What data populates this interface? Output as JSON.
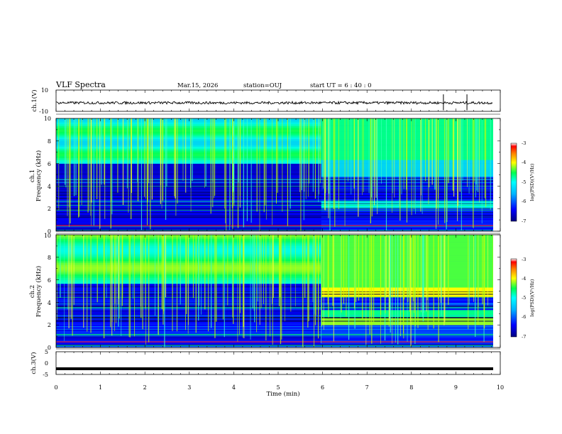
{
  "header": {
    "title": "VLF Spectra",
    "date": "Mar.15, 2026",
    "station": "station=OUJ",
    "start": "start UT =  6 : 40 : 0"
  },
  "axes": {
    "time_label": "Time  (min)",
    "time_ticks": [
      "0",
      "1",
      "2",
      "3",
      "4",
      "5",
      "6",
      "7",
      "8",
      "9",
      "10"
    ],
    "ch1_wave_label": "ch.1(V)",
    "ch1_wave_ticks": [
      "10",
      "-10"
    ],
    "spec1_label_a": "ch.1",
    "spec1_label_b": "Frequency  (kHz)",
    "spec2_label_a": "ch.2",
    "spec2_label_b": "Frequency  (kHz)",
    "freq_ticks": [
      "0",
      "2",
      "4",
      "6",
      "8",
      "10"
    ],
    "ch3_label": "ch.3(V)",
    "ch3_ticks": [
      "5",
      "0",
      "-5"
    ]
  },
  "colorbar": {
    "label": "log(PSD)(V²/Hz)",
    "ticks": [
      "-3",
      "-4",
      "-5",
      "-6",
      "-7"
    ]
  },
  "colors": {
    "spectrum_scale": [
      "#00007a",
      "#0000ff",
      "#0096ff",
      "#00ffff",
      "#00ff64",
      "#ffff00",
      "#ff8000",
      "#ff0000",
      "#ffffff"
    ]
  },
  "chart_data": [
    {
      "type": "line",
      "title": "VLF Spectra",
      "panel": "ch.1 waveform",
      "xlabel": "Time  (min)",
      "ylabel": "ch.1(V)",
      "xlim": [
        0,
        10
      ],
      "ylim": [
        -10,
        10
      ],
      "series": [
        {
          "name": "ch.1",
          "typical_level": -2,
          "spikes_at_min": [
            8.72,
            9.25
          ]
        }
      ]
    },
    {
      "type": "heatmap",
      "panel": "ch.1 spectrogram",
      "xlabel": "Time  (min)",
      "ylabel": "Frequency  (kHz)",
      "xlim": [
        0,
        10
      ],
      "ylim": [
        0,
        10
      ],
      "color_scale": "log(PSD)(V²/Hz)",
      "zlim": [
        -7,
        -3
      ],
      "data_end_min": 9.84,
      "regime_change_min": 5.97
    },
    {
      "type": "heatmap",
      "panel": "ch.2 spectrogram",
      "xlabel": "Time  (min)",
      "ylabel": "Frequency  (kHz)",
      "xlim": [
        0,
        10
      ],
      "ylim": [
        0,
        10
      ],
      "color_scale": "log(PSD)(V²/Hz)",
      "zlim": [
        -7,
        -3
      ],
      "data_end_min": 9.84,
      "regime_change_min": 5.97
    },
    {
      "type": "line",
      "panel": "ch.3 waveform",
      "xlabel": "Time  (min)",
      "ylabel": "ch.3(V)",
      "xlim": [
        0,
        10
      ],
      "ylim": [
        -5,
        5
      ],
      "series": [
        {
          "name": "ch.3",
          "constant_value": -2.5
        }
      ]
    }
  ]
}
